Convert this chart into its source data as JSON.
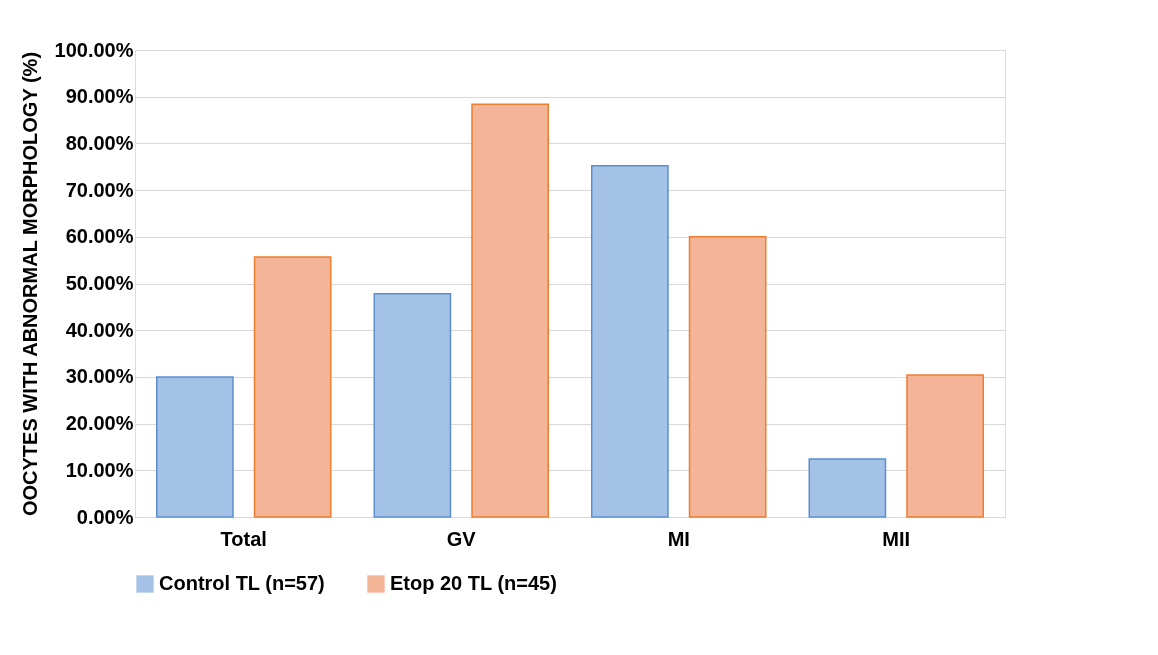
{
  "chart_data": {
    "type": "bar",
    "ylabel": "OOCYTES WITH ABNORMAL MORPHOLOGY (%)",
    "categories": [
      "Total",
      "GV",
      "MI",
      "MII"
    ],
    "series": [
      {
        "name": "Control TL (n=57)",
        "color": "#a4c2e6",
        "values": [
          30.0,
          47.8,
          75.2,
          12.4
        ]
      },
      {
        "name": "Etop 20 TL (n=45)",
        "color": "#f4b497",
        "values": [
          55.7,
          88.4,
          60.0,
          30.4
        ]
      }
    ],
    "ylim": [
      0,
      100
    ],
    "yticks": [
      {
        "value": 0,
        "label": "0.00%"
      },
      {
        "value": 10,
        "label": "10.00%"
      },
      {
        "value": 20,
        "label": "20.00%"
      },
      {
        "value": 30,
        "label": "30.00%"
      },
      {
        "value": 40,
        "label": "40.00%"
      },
      {
        "value": 50,
        "label": "50.00%"
      },
      {
        "value": 60,
        "label": "60.00%"
      },
      {
        "value": 70,
        "label": "70.00%"
      },
      {
        "value": 80,
        "label": "80.00%"
      },
      {
        "value": 90,
        "label": "90.00%"
      },
      {
        "value": 100,
        "label": "100.00%"
      }
    ],
    "grid": "y",
    "legend": "bottom"
  }
}
